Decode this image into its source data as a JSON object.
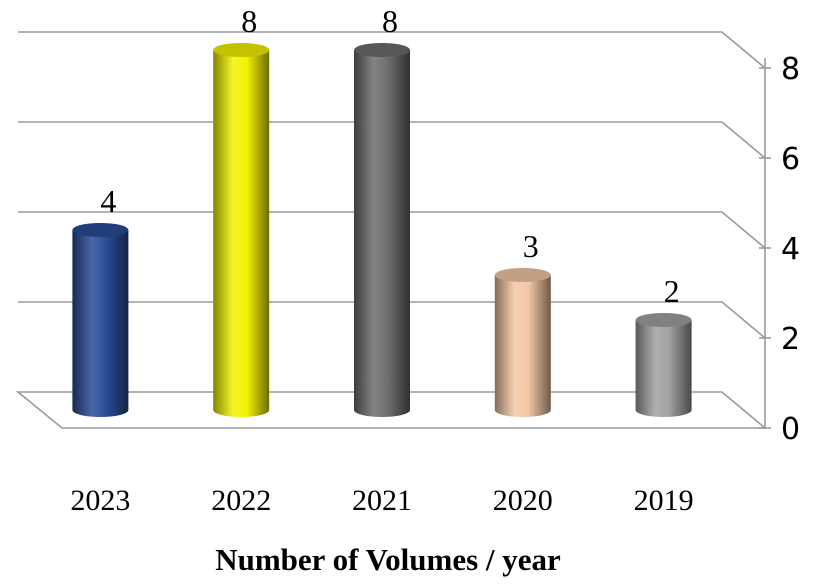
{
  "chart_data": {
    "type": "bar",
    "style": "3d-cylinder",
    "categories": [
      "2023",
      "2022",
      "2021",
      "2020",
      "2019"
    ],
    "values": [
      4,
      8,
      8,
      3,
      2
    ],
    "colors": [
      "#2a4d96",
      "#f2f200",
      "#6e6e6e",
      "#f4c7a4",
      "#a3a0a0"
    ],
    "xlabel": "Number of Volumes / year",
    "ylim": [
      0,
      8
    ],
    "y_ticks": [
      "0",
      "2",
      "4",
      "6",
      "8"
    ],
    "y_axis_side": "right",
    "grid": true,
    "legend": "none"
  }
}
